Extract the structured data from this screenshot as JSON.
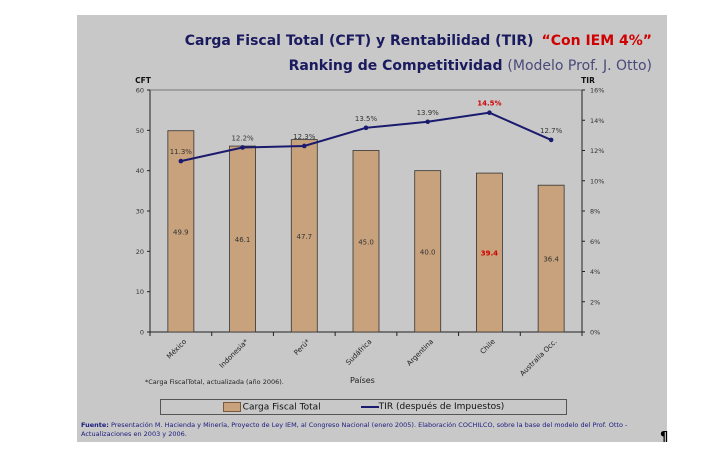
{
  "title": {
    "main": "Carga Fiscal Total (CFT) y Rentabilidad (TIR)",
    "highlight": "“Con IEM 4%”",
    "sub": "Ranking de Competitividad",
    "sub_paren": "(Modelo Prof. J. Otto)"
  },
  "chart_data": {
    "type": "bar+line",
    "categories": [
      "México",
      "Indonesia*",
      "Perú*",
      "Sudáfrica",
      "Argentina",
      "Chile",
      "Australia Occ."
    ],
    "series": [
      {
        "name": "Carga Fiscal Total",
        "type": "bar",
        "axis": "left",
        "values": [
          49.9,
          46.1,
          47.7,
          45.0,
          40.0,
          39.4,
          36.4
        ],
        "labels": [
          "49.9",
          "46.1",
          "47.7",
          "45.0",
          "40.0",
          "39.4",
          "36.4"
        ],
        "color": "#c8a27c"
      },
      {
        "name": "TIR (después de Impuestos)",
        "type": "line",
        "axis": "right",
        "values": [
          11.3,
          12.2,
          12.3,
          13.5,
          13.9,
          14.5,
          12.7
        ],
        "labels": [
          "11.3%",
          "12.2%",
          "12.3%",
          "13.5%",
          "13.9%",
          "14.5%",
          "12.7%"
        ],
        "color": "#1a1a6e"
      }
    ],
    "highlight_category": "Chile",
    "highlight_color": "#d00000",
    "ylabel_left": "CFT",
    "ylabel_right": "TIR",
    "xlabel": "Países",
    "ylim_left": [
      0,
      60
    ],
    "yticks_left": [
      "0",
      "10",
      "20",
      "30",
      "40",
      "50",
      "60"
    ],
    "ylim_right": [
      0,
      16
    ],
    "yticks_right": [
      "0%",
      "2%",
      "4%",
      "6%",
      "8%",
      "10%",
      "12%",
      "14%",
      "16%"
    ],
    "legend": "bottom",
    "grid": false
  },
  "note": "*Carga FiscalTotal, actualizada (año 2006).",
  "source": {
    "label": "Fuente:",
    "text": " Presentación M. Hacienda y Minería, Proyecto de Ley IEM, al Congreso Nacional (enero 2005). Elaboración COCHILCO, sobre la base del modelo del Prof. Otto - Actualizaciones en 2003 y 2006."
  },
  "pilcrow": "¶"
}
